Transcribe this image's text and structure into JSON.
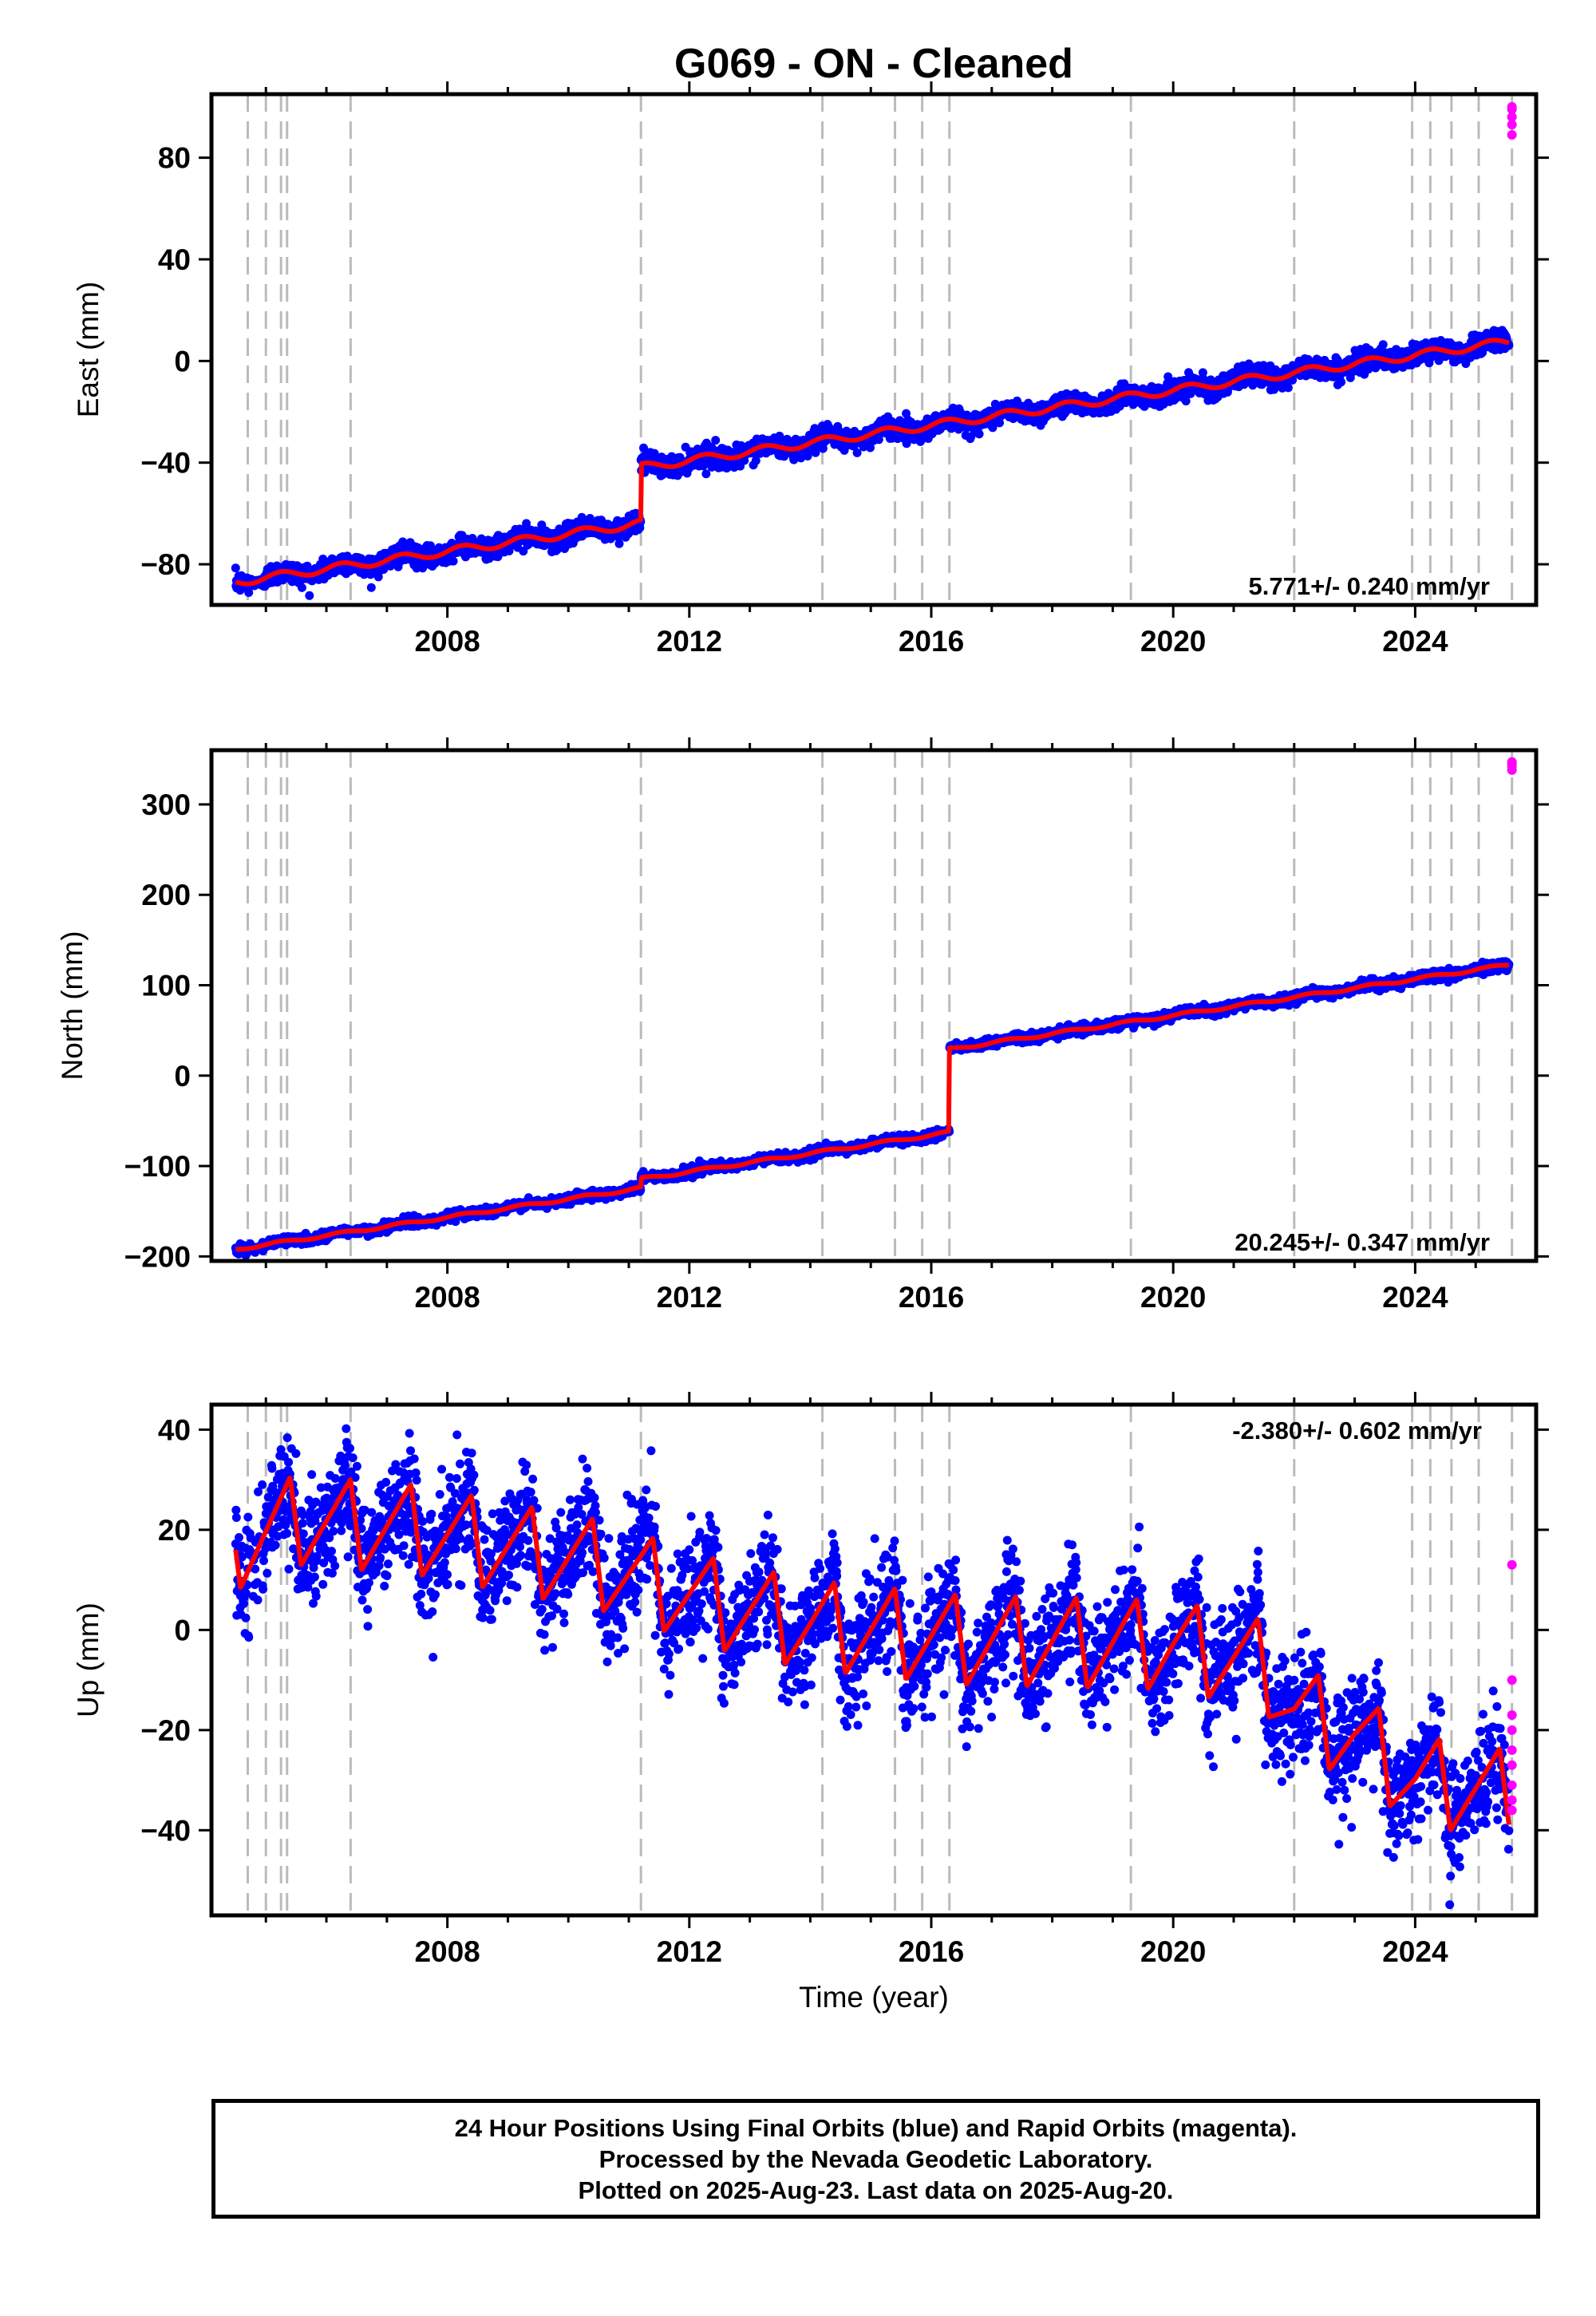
{
  "figure_title": "G069  - ON - Cleaned",
  "xlabel": "Time (year)",
  "x_tick_labels": [
    "2008",
    "2012",
    "2016",
    "2020",
    "2024"
  ],
  "colors": {
    "final_orbits": "#0000ff",
    "rapid_orbits": "#ff00ff",
    "model_fit": "#ff0000",
    "event_lines": "#bbbbbb"
  },
  "footer": {
    "line1": "24 Hour Positions Using Final Orbits (blue) and Rapid Orbits (magenta).",
    "line2": "Processed by the Nevada Geodetic Laboratory.",
    "line3": "Plotted on 2025-Aug-23. Last data on 2025-Aug-20."
  },
  "chart_data": [
    {
      "type": "scatter",
      "ylabel": "East (mm)",
      "velocity_label": "5.771+/- 0.240 mm/yr",
      "velocity_position": "bottom-right",
      "xlim": [
        2004.1,
        2026.0
      ],
      "ylim": [
        -96,
        105
      ],
      "x_ticks": [
        2008,
        2012,
        2016,
        2020,
        2024
      ],
      "y_ticks": [
        -80,
        -40,
        0,
        40,
        80
      ],
      "y_tick_labels": [
        "−80",
        "−40",
        "0",
        "40",
        "80"
      ],
      "event_lines_years": [
        2004.7,
        2005.0,
        2005.25,
        2005.35,
        2006.4,
        2011.2,
        2014.2,
        2015.4,
        2015.85,
        2016.3,
        2019.3,
        2022.0,
        2023.95,
        2024.25,
        2024.6,
        2025.05,
        2025.6
      ],
      "trend": {
        "x0": 2004.5,
        "y0": -87,
        "rate": 3.45,
        "season_amp": 1.5,
        "noise": 2.0
      },
      "offsets": [
        {
          "year": 2011.2,
          "size": 22
        }
      ],
      "rapid_orbits": {
        "year": 2025.6,
        "values": [
          89,
          93,
          96,
          99,
          100
        ]
      }
    },
    {
      "type": "scatter",
      "ylabel": "North (mm)",
      "velocity_label": "20.245+/- 0.347 mm/yr",
      "velocity_position": "bottom-right",
      "xlim": [
        2004.1,
        2026.0
      ],
      "ylim": [
        -205,
        360
      ],
      "x_ticks": [
        2008,
        2012,
        2016,
        2020,
        2024
      ],
      "y_ticks": [
        -200,
        -100,
        0,
        100,
        200,
        300
      ],
      "y_tick_labels": [
        "−200",
        "−100",
        "0",
        "100",
        "200",
        "300"
      ],
      "event_lines_years": [
        2004.7,
        2005.0,
        2005.25,
        2005.35,
        2006.4,
        2011.2,
        2014.2,
        2015.4,
        2015.85,
        2016.3,
        2019.3,
        2022.0,
        2023.95,
        2024.25,
        2024.6,
        2025.05,
        2025.6
      ],
      "trend": {
        "x0": 2004.5,
        "y0": -192,
        "rate": 10.1,
        "season_amp": 1.5,
        "noise": 2.5
      },
      "offsets": [
        {
          "year": 2011.2,
          "size": 10
        },
        {
          "year": 2016.3,
          "size": 92
        }
      ],
      "rapid_orbits": {
        "year": 2025.6,
        "values": [
          338,
          342,
          345,
          347
        ]
      }
    },
    {
      "type": "scatter",
      "ylabel": "Up (mm)",
      "velocity_label": "-2.380+/- 0.602 mm/yr",
      "velocity_position": "top-right",
      "xlim": [
        2004.1,
        2026.0
      ],
      "ylim": [
        -57,
        45
      ],
      "x_ticks": [
        2008,
        2012,
        2016,
        2020,
        2024
      ],
      "y_ticks": [
        -40,
        -20,
        0,
        20,
        40
      ],
      "y_tick_labels": [
        "−40",
        "−20",
        "0",
        "20",
        "40"
      ],
      "event_lines_years": [
        2004.7,
        2005.0,
        2005.25,
        2005.35,
        2006.4,
        2011.2,
        2014.2,
        2015.4,
        2015.85,
        2016.3,
        2019.3,
        2022.0,
        2023.95,
        2024.25,
        2024.6,
        2025.05,
        2025.6
      ],
      "model_knots": [
        [
          2004.5,
          17
        ],
        [
          2005.5,
          22
        ],
        [
          2007.5,
          20
        ],
        [
          2010.5,
          13
        ],
        [
          2012.5,
          5
        ],
        [
          2014.0,
          1
        ],
        [
          2016.5,
          -2
        ],
        [
          2020.0,
          -3
        ],
        [
          2021.5,
          -7
        ],
        [
          2022.0,
          -16
        ],
        [
          2023.0,
          -21
        ],
        [
          2024.0,
          -30
        ],
        [
          2025.6,
          -33
        ]
      ],
      "season_amp": 9,
      "noise": 5.5,
      "rapid_orbits": {
        "year": 2025.6,
        "values": [
          13,
          -10,
          -17,
          -20,
          -24,
          -27,
          -31,
          -34,
          -36
        ]
      }
    }
  ]
}
